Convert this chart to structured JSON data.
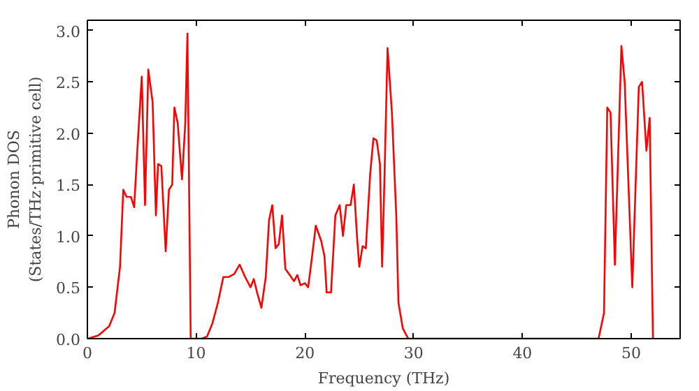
{
  "chart_data": {
    "type": "line",
    "xlabel": "Frequency (THz)",
    "ylabel": "Phonon DOS\n(States/THz·primitive cell)",
    "xlim": [
      0,
      54.5
    ],
    "ylim": [
      0,
      3.1
    ],
    "xticks": [
      0,
      10,
      20,
      30,
      40,
      50
    ],
    "yticks": [
      {
        "value": 0,
        "label": "0.0"
      },
      {
        "value": 0.5,
        "label": "0.5"
      },
      {
        "value": 1,
        "label": "1.0"
      },
      {
        "value": 1.5,
        "label": "1.5"
      },
      {
        "value": 2,
        "label": "2.0"
      },
      {
        "value": 2.5,
        "label": "2.5"
      },
      {
        "value": 3,
        "label": "3.0"
      }
    ],
    "grid": false,
    "marker": "none",
    "line_style": "solid",
    "x": [
      0,
      1,
      2,
      2.5,
      3,
      3.3,
      3.6,
      4,
      4.3,
      4.6,
      5,
      5.3,
      5.6,
      6,
      6.3,
      6.5,
      6.8,
      7.2,
      7.5,
      7.8,
      8,
      8.3,
      8.7,
      9,
      9.2,
      9.5,
      10.5,
      11,
      11.5,
      12,
      12.5,
      13,
      13.5,
      14,
      14.5,
      15,
      15.3,
      15.6,
      16,
      16.4,
      16.7,
      17,
      17.3,
      17.6,
      17.9,
      18.2,
      18.6,
      19,
      19.3,
      19.6,
      20,
      20.3,
      20.6,
      21,
      21.5,
      21.8,
      22,
      22.4,
      22.8,
      23.2,
      23.5,
      23.8,
      24.2,
      24.5,
      24.8,
      25,
      25.3,
      25.6,
      26,
      26.3,
      26.6,
      26.9,
      27.1,
      27.3,
      27.6,
      28,
      28.4,
      28.6,
      29,
      29.5,
      30,
      47,
      47.5,
      47.8,
      48.1,
      48.5,
      49.1,
      49.4,
      50.1,
      50.7,
      51,
      51.4,
      51.7,
      52
    ],
    "series": [
      {
        "color": "#ff0000",
        "values": [
          0,
          0.03,
          0.12,
          0.25,
          0.7,
          1.45,
          1.38,
          1.38,
          1.28,
          1.85,
          2.55,
          1.3,
          2.62,
          2.3,
          1.2,
          1.7,
          1.68,
          0.85,
          1.45,
          1.5,
          2.25,
          2.1,
          1.55,
          2.1,
          2.97,
          0,
          0,
          0.02,
          0.15,
          0.35,
          0.6,
          0.6,
          0.63,
          0.72,
          0.6,
          0.5,
          0.58,
          0.45,
          0.3,
          0.6,
          1.15,
          1.3,
          0.88,
          0.92,
          1.2,
          0.68,
          0.62,
          0.56,
          0.62,
          0.52,
          0.54,
          0.5,
          0.75,
          1.1,
          0.95,
          0.8,
          0.45,
          0.45,
          1.2,
          1.3,
          1.0,
          1.3,
          1.3,
          1.5,
          0.98,
          0.7,
          0.9,
          0.88,
          1.6,
          1.95,
          1.93,
          1.7,
          0.7,
          1.5,
          2.83,
          2.2,
          1.2,
          0.35,
          0.1,
          0,
          0,
          0,
          0.25,
          2.25,
          2.2,
          0.72,
          2.85,
          2.5,
          0.5,
          2.45,
          2.5,
          1.83,
          2.15,
          0
        ]
      }
    ]
  }
}
